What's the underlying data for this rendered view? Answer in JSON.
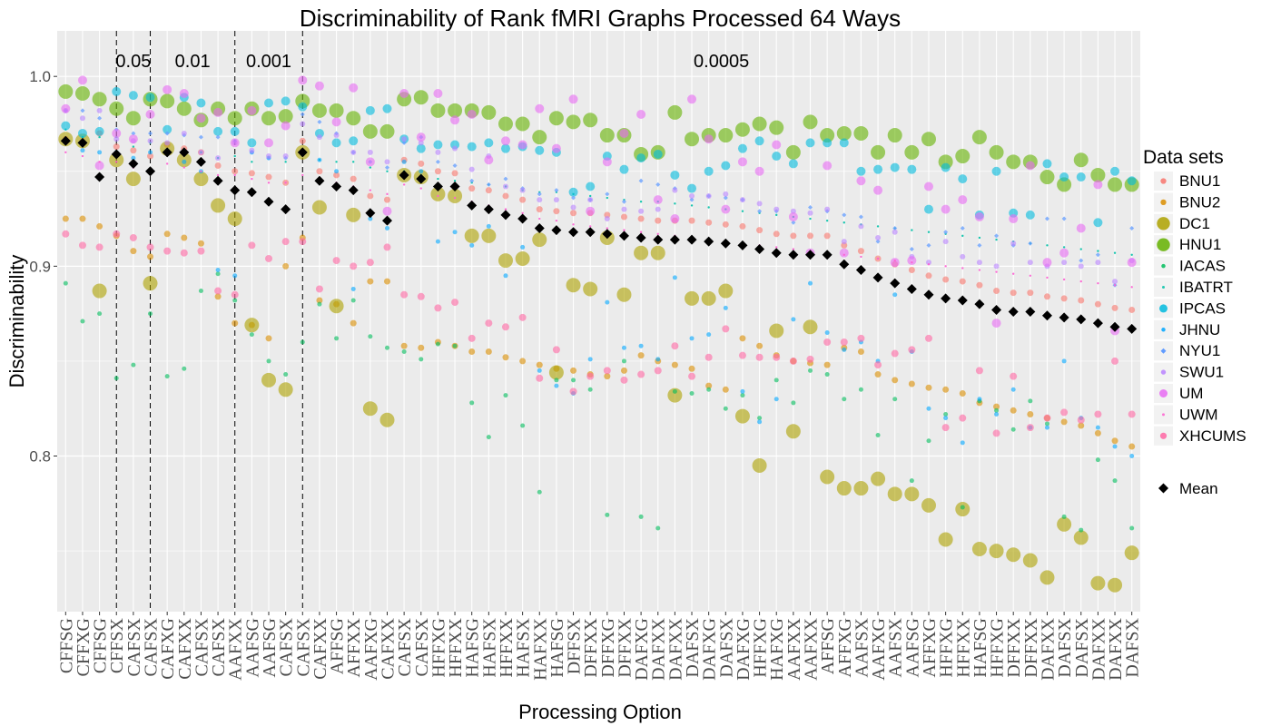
{
  "chart_data": {
    "type": "scatter",
    "title": "Discriminability of Rank fMRI Graphs Processed 64 Ways",
    "xlabel": "Processing Option",
    "ylabel": "Discriminability",
    "ylim": [
      0.718,
      1.024
    ],
    "yticks": [
      0.8,
      0.9,
      1.0
    ],
    "ytick_labels": [
      "0.8",
      "0.9",
      "1.0"
    ],
    "grid": true,
    "legend_placement": "right",
    "legend_title": "Data sets",
    "categories": [
      "CFFSG",
      "CFFXG",
      "CFFSG",
      "CFFSX",
      "CAFSX",
      "CAFSX",
      "CAFXG",
      "CAFXX",
      "CAFSX",
      "CAFSX",
      "AAFXX",
      "AAFSG",
      "AAFSG",
      "CAFSX",
      "CAFSX",
      "CAFXX",
      "AFFSG",
      "AFFXX",
      "AAFXG",
      "CAFXX",
      "CAFSX",
      "CAFSX",
      "HFFXG",
      "HFFXX",
      "HAFSG",
      "HAFSX",
      "HFFXX",
      "HAFSX",
      "HAFXX",
      "HAFSG",
      "DFFSX",
      "DFFXX",
      "DFFXG",
      "DFFXX",
      "DAFXG",
      "DAFXX",
      "DAFXX",
      "DAFSX",
      "DAFXG",
      "DAFSX",
      "DAFXG",
      "HFFXG",
      "HAFXG",
      "AAFXX",
      "AAFXX",
      "AFFSG",
      "AFFXG",
      "AAFSX",
      "AAFXG",
      "AAFSX",
      "AAFSG",
      "AFFXG",
      "HFFXG",
      "HFFXX",
      "HAFSG",
      "HFFXG",
      "DFFXX",
      "DFFXX",
      "DAFXX",
      "DAFSX",
      "DAFSX",
      "DAFXX",
      "DAFXX",
      "DAFSX"
    ],
    "alpha_thresholds": [
      {
        "label": "0.05",
        "after_index": 2
      },
      {
        "label": "0.01",
        "after_index": 4
      },
      {
        "label": "0.001",
        "after_index": 9
      },
      {
        "label": "0.0005",
        "after_index": 13
      }
    ],
    "mean_series": {
      "name": "Mean",
      "color": "#000000",
      "values": [
        0.966,
        0.965,
        0.947,
        0.959,
        0.954,
        0.95,
        0.96,
        0.96,
        0.955,
        0.945,
        0.94,
        0.939,
        0.934,
        0.93,
        0.96,
        0.945,
        0.942,
        0.94,
        0.928,
        0.924,
        0.948,
        0.946,
        0.942,
        0.942,
        0.932,
        0.93,
        0.927,
        0.925,
        0.92,
        0.919,
        0.918,
        0.918,
        0.917,
        0.916,
        0.915,
        0.914,
        0.914,
        0.914,
        0.913,
        0.912,
        0.911,
        0.909,
        0.907,
        0.906,
        0.906,
        0.906,
        0.901,
        0.898,
        0.894,
        0.891,
        0.888,
        0.885,
        0.883,
        0.882,
        0.88,
        0.877,
        0.876,
        0.876,
        0.874,
        0.873,
        0.872,
        0.87,
        0.868,
        0.867
      ]
    },
    "series": [
      {
        "name": "BNU1",
        "color": "#F8766D",
        "shape": "circle",
        "size": 3.5,
        "values": [
          0.967,
          0.965,
          0.97,
          0.963,
          0.961,
          0.958,
          0.964,
          0.962,
          0.96,
          0.953,
          0.95,
          0.949,
          0.947,
          0.944,
          0.966,
          0.95,
          0.948,
          0.946,
          0.937,
          0.935,
          0.956,
          0.954,
          0.95,
          0.949,
          0.941,
          0.94,
          0.937,
          0.935,
          0.93,
          0.929,
          0.928,
          0.928,
          0.927,
          0.926,
          0.925,
          0.924,
          0.924,
          0.924,
          0.923,
          0.922,
          0.921,
          0.919,
          0.917,
          0.916,
          0.916,
          0.916,
          0.911,
          0.908,
          0.904,
          0.901,
          0.898,
          0.895,
          0.893,
          0.892,
          0.89,
          0.887,
          0.886,
          0.886,
          0.884,
          0.883,
          0.882,
          0.88,
          0.878,
          0.877
        ]
      },
      {
        "name": "BNU2",
        "color": "#DB8E00",
        "shape": "circle",
        "size": 3.5,
        "values": [
          0.925,
          0.925,
          0.921,
          0.916,
          0.908,
          0.905,
          0.917,
          0.915,
          0.912,
          0.884,
          0.87,
          0.869,
          0.862,
          0.9,
          0.915,
          0.882,
          0.88,
          0.87,
          0.892,
          0.892,
          0.858,
          0.857,
          0.86,
          0.858,
          0.855,
          0.855,
          0.852,
          0.85,
          0.848,
          0.846,
          0.845,
          0.843,
          0.842,
          0.845,
          0.853,
          0.85,
          0.848,
          0.846,
          0.837,
          0.835,
          0.862,
          0.858,
          0.853,
          0.85,
          0.849,
          0.848,
          0.857,
          0.855,
          0.843,
          0.84,
          0.838,
          0.836,
          0.835,
          0.833,
          0.828,
          0.826,
          0.824,
          0.822,
          0.82,
          0.818,
          0.816,
          0.812,
          0.808,
          0.805
        ]
      },
      {
        "name": "DC1",
        "color": "#AEA200",
        "shape": "circle",
        "size": 8,
        "values": [
          0.967,
          0.966,
          0.887,
          0.956,
          0.946,
          0.891,
          0.962,
          0.956,
          0.946,
          0.932,
          0.925,
          0.869,
          0.84,
          0.835,
          0.96,
          0.931,
          0.879,
          0.927,
          0.825,
          0.819,
          0.948,
          0.947,
          0.938,
          0.937,
          0.916,
          0.916,
          0.903,
          0.904,
          0.914,
          0.844,
          0.89,
          0.888,
          0.915,
          0.885,
          0.907,
          0.907,
          0.832,
          0.883,
          0.883,
          0.887,
          0.821,
          0.795,
          0.866,
          0.813,
          0.868,
          0.789,
          0.783,
          0.783,
          0.788,
          0.78,
          0.78,
          0.774,
          0.756,
          0.772,
          0.751,
          0.75,
          0.748,
          0.745,
          0.736,
          0.764,
          0.757,
          0.733,
          0.732,
          0.749
        ]
      },
      {
        "name": "HNU1",
        "color": "#64B200",
        "shape": "circle",
        "size": 8,
        "values": [
          0.992,
          0.991,
          0.988,
          0.983,
          0.978,
          0.988,
          0.987,
          0.983,
          0.977,
          0.983,
          0.978,
          0.983,
          0.978,
          0.979,
          0.987,
          0.982,
          0.982,
          0.978,
          0.971,
          0.971,
          0.988,
          0.989,
          0.982,
          0.982,
          0.982,
          0.981,
          0.975,
          0.975,
          0.968,
          0.978,
          0.976,
          0.977,
          0.969,
          0.969,
          0.959,
          0.96,
          0.981,
          0.967,
          0.969,
          0.969,
          0.972,
          0.975,
          0.973,
          0.96,
          0.976,
          0.969,
          0.97,
          0.97,
          0.96,
          0.969,
          0.96,
          0.967,
          0.955,
          0.958,
          0.968,
          0.96,
          0.955,
          0.955,
          0.947,
          0.943,
          0.956,
          0.948,
          0.943,
          0.943
        ]
      },
      {
        "name": "IACAS",
        "color": "#00BD5C",
        "shape": "circle",
        "size": 2.5,
        "values": [
          0.891,
          0.871,
          0.875,
          0.841,
          0.848,
          0.875,
          0.842,
          0.846,
          0.887,
          0.896,
          0.882,
          0.864,
          0.85,
          0.843,
          0.86,
          0.88,
          0.862,
          0.882,
          0.863,
          0.857,
          0.855,
          0.851,
          0.859,
          0.858,
          0.828,
          0.81,
          0.832,
          0.816,
          0.781,
          0.84,
          0.84,
          0.835,
          0.769,
          0.85,
          0.768,
          0.762,
          0.834,
          0.833,
          0.835,
          0.825,
          0.832,
          0.82,
          0.84,
          0.828,
          0.845,
          0.843,
          0.83,
          0.835,
          0.811,
          0.83,
          0.787,
          0.808,
          0.822,
          0.773,
          0.829,
          0.824,
          0.814,
          0.829,
          0.817,
          0.768,
          0.761,
          0.798,
          0.787,
          0.762
        ]
      },
      {
        "name": "IBATRT",
        "color": "#00C1A7",
        "shape": "dot",
        "size": 1.2,
        "values": [
          0.972,
          0.968,
          0.968,
          0.968,
          0.963,
          0.965,
          0.96,
          0.96,
          0.96,
          0.957,
          0.958,
          0.955,
          0.957,
          0.955,
          0.96,
          0.956,
          0.955,
          0.955,
          0.952,
          0.95,
          0.95,
          0.948,
          0.946,
          0.945,
          0.944,
          0.943,
          0.942,
          0.94,
          0.939,
          0.939,
          0.938,
          0.937,
          0.936,
          0.935,
          0.934,
          0.934,
          0.933,
          0.932,
          0.931,
          0.93,
          0.929,
          0.928,
          0.927,
          0.926,
          0.925,
          0.924,
          0.923,
          0.922,
          0.921,
          0.92,
          0.919,
          0.918,
          0.917,
          0.916,
          0.915,
          0.914,
          0.913,
          0.912,
          0.911,
          0.91,
          0.909,
          0.908,
          0.907,
          0.906
        ]
      },
      {
        "name": "IPCAS",
        "color": "#00BADE",
        "shape": "circle",
        "size": 5,
        "values": [
          0.974,
          0.97,
          0.971,
          0.992,
          0.99,
          0.989,
          0.972,
          0.989,
          0.986,
          0.971,
          0.971,
          0.965,
          0.986,
          0.987,
          0.984,
          0.97,
          0.965,
          0.966,
          0.982,
          0.983,
          0.967,
          0.962,
          0.964,
          0.964,
          0.963,
          0.965,
          0.962,
          0.963,
          0.961,
          0.96,
          0.939,
          0.942,
          0.958,
          0.951,
          0.957,
          0.959,
          0.948,
          0.941,
          0.95,
          0.953,
          0.962,
          0.966,
          0.958,
          0.954,
          0.965,
          0.965,
          0.965,
          0.95,
          0.951,
          0.952,
          0.951,
          0.93,
          0.952,
          0.946,
          0.927,
          0.95,
          0.928,
          0.927,
          0.954,
          0.947,
          0.947,
          0.923,
          0.95,
          0.945
        ]
      },
      {
        "name": "JHNU",
        "color": "#00A6FF",
        "shape": "circle",
        "size": 2.5,
        "values": [
          0.967,
          0.961,
          0.96,
          0.96,
          0.957,
          0.96,
          0.961,
          0.955,
          0.95,
          0.898,
          0.895,
          0.96,
          0.957,
          0.93,
          0.96,
          0.956,
          0.95,
          0.888,
          0.925,
          0.92,
          0.955,
          0.95,
          0.913,
          0.918,
          0.911,
          0.921,
          0.895,
          0.91,
          0.845,
          0.837,
          0.833,
          0.851,
          0.881,
          0.857,
          0.858,
          0.851,
          0.894,
          0.862,
          0.864,
          0.878,
          0.834,
          0.818,
          0.83,
          0.872,
          0.891,
          0.865,
          0.856,
          0.86,
          0.85,
          0.885,
          0.855,
          0.825,
          0.82,
          0.807,
          0.83,
          0.822,
          0.835,
          0.815,
          0.815,
          0.85,
          0.82,
          0.815,
          0.805,
          0.8
        ]
      },
      {
        "name": "NYU1",
        "color": "#619CFF",
        "shape": "diamond",
        "size": 2.5,
        "values": [
          0.982,
          0.982,
          0.978,
          0.972,
          0.97,
          0.97,
          0.97,
          0.969,
          0.968,
          0.968,
          0.966,
          0.96,
          0.957,
          0.957,
          0.98,
          0.976,
          0.97,
          0.96,
          0.955,
          0.952,
          0.965,
          0.968,
          0.955,
          0.953,
          0.945,
          0.943,
          0.946,
          0.941,
          0.938,
          0.94,
          0.936,
          0.935,
          0.938,
          0.934,
          0.945,
          0.943,
          0.941,
          0.935,
          0.937,
          0.936,
          0.935,
          0.929,
          0.929,
          0.923,
          0.931,
          0.929,
          0.927,
          0.926,
          0.913,
          0.92,
          0.909,
          0.911,
          0.918,
          0.92,
          0.911,
          0.916,
          0.911,
          0.912,
          0.925,
          0.925,
          0.903,
          0.906,
          0.89,
          0.92
        ]
      },
      {
        "name": "SWU1",
        "color": "#B983FF",
        "shape": "circle",
        "size": 3,
        "values": [
          0.982,
          0.978,
          0.982,
          0.967,
          0.966,
          0.966,
          0.965,
          0.97,
          0.96,
          0.957,
          0.965,
          0.961,
          0.958,
          0.958,
          0.975,
          0.968,
          0.969,
          0.96,
          0.96,
          0.955,
          0.967,
          0.965,
          0.96,
          0.962,
          0.951,
          0.958,
          0.942,
          0.94,
          0.935,
          0.935,
          0.931,
          0.935,
          0.925,
          0.93,
          0.929,
          0.93,
          0.94,
          0.937,
          0.937,
          0.938,
          0.935,
          0.933,
          0.93,
          0.929,
          0.928,
          0.93,
          0.913,
          0.921,
          0.915,
          0.918,
          0.905,
          0.902,
          0.913,
          0.905,
          0.902,
          0.9,
          0.912,
          0.902,
          0.9,
          0.902,
          0.9,
          0.902,
          0.892,
          0.903
        ]
      },
      {
        "name": "UM",
        "color": "#E76BF3",
        "shape": "circle",
        "size": 5,
        "values": [
          0.983,
          0.998,
          0.953,
          0.97,
          0.967,
          0.98,
          0.993,
          0.991,
          0.978,
          0.981,
          0.965,
          0.982,
          0.965,
          0.974,
          0.998,
          0.995,
          0.976,
          0.994,
          0.955,
          0.929,
          0.991,
          0.968,
          0.991,
          0.977,
          0.98,
          0.956,
          0.966,
          0.964,
          0.983,
          0.962,
          0.988,
          0.929,
          0.955,
          0.97,
          0.98,
          0.935,
          0.925,
          0.988,
          0.967,
          0.93,
          0.955,
          0.95,
          0.964,
          0.926,
          0.907,
          0.953,
          0.907,
          0.945,
          0.94,
          0.902,
          0.903,
          0.942,
          0.93,
          0.935,
          0.926,
          0.87,
          0.925,
          0.953,
          0.902,
          0.907,
          0.92,
          0.943,
          0.866,
          0.902
        ]
      },
      {
        "name": "UWM",
        "color": "#FD61D1",
        "shape": "dot",
        "size": 1.2,
        "values": [
          0.96,
          0.958,
          0.955,
          0.955,
          0.952,
          0.95,
          0.954,
          0.952,
          0.95,
          0.948,
          0.948,
          0.946,
          0.944,
          0.944,
          0.948,
          0.946,
          0.944,
          0.942,
          0.94,
          0.938,
          0.943,
          0.941,
          0.937,
          0.936,
          0.934,
          0.932,
          0.93,
          0.928,
          0.925,
          0.924,
          0.922,
          0.921,
          0.92,
          0.919,
          0.918,
          0.917,
          0.916,
          0.915,
          0.914,
          0.913,
          0.912,
          0.911,
          0.91,
          0.909,
          0.908,
          0.907,
          0.906,
          0.905,
          0.904,
          0.903,
          0.902,
          0.901,
          0.9,
          0.899,
          0.898,
          0.897,
          0.896,
          0.895,
          0.894,
          0.893,
          0.892,
          0.891,
          0.89,
          0.889
        ]
      },
      {
        "name": "XHCUMS",
        "color": "#FF67A4",
        "shape": "circle",
        "size": 4,
        "values": [
          0.917,
          0.911,
          0.91,
          0.917,
          0.915,
          0.91,
          0.908,
          0.907,
          0.908,
          0.887,
          0.885,
          0.911,
          0.904,
          0.913,
          0.913,
          0.888,
          0.903,
          0.9,
          0.902,
          0.91,
          0.885,
          0.884,
          0.878,
          0.881,
          0.862,
          0.87,
          0.868,
          0.873,
          0.841,
          0.856,
          0.834,
          0.842,
          0.845,
          0.84,
          0.843,
          0.845,
          0.858,
          0.842,
          0.852,
          0.867,
          0.853,
          0.852,
          0.852,
          0.85,
          0.851,
          0.86,
          0.86,
          0.862,
          0.848,
          0.854,
          0.856,
          0.862,
          0.815,
          0.82,
          0.845,
          0.812,
          0.842,
          0.815,
          0.82,
          0.823,
          0.819,
          0.822,
          0.85,
          0.822
        ]
      }
    ]
  }
}
